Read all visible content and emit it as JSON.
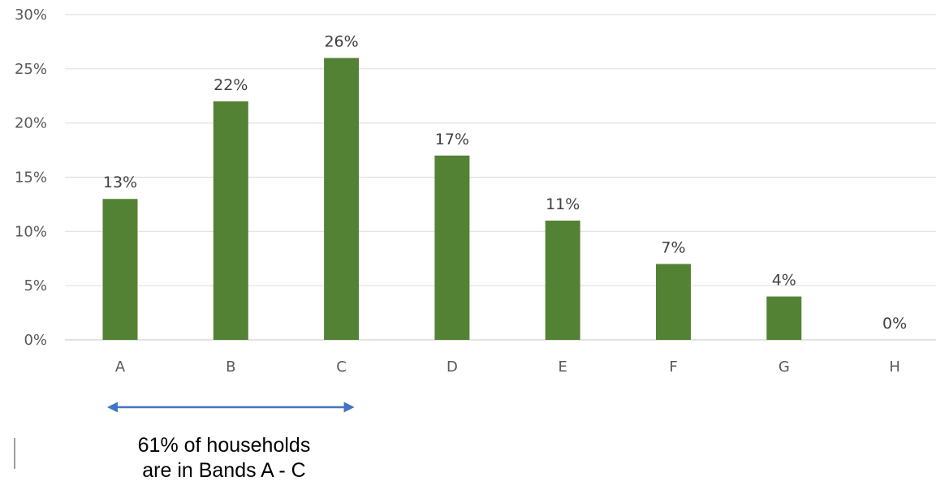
{
  "chart_data": {
    "type": "bar",
    "title": "",
    "xlabel": "",
    "ylabel": "",
    "categories": [
      "A",
      "B",
      "C",
      "D",
      "E",
      "F",
      "G",
      "H"
    ],
    "series": [
      {
        "values": [
          13,
          22,
          26,
          17,
          11,
          7,
          4,
          0
        ],
        "color": "#548235"
      }
    ],
    "data_labels": [
      "13%",
      "22%",
      "26%",
      "17%",
      "11%",
      "7%",
      "4%",
      "0%"
    ],
    "ylim": [
      0,
      30
    ],
    "y_ticks": [
      0,
      5,
      10,
      15,
      20,
      25,
      30
    ],
    "y_tick_labels": [
      "0%",
      "5%",
      "10%",
      "15%",
      "20%",
      "25%",
      "30%"
    ],
    "grid": true,
    "legend": "none",
    "annotation": {
      "span": [
        "A",
        "C"
      ],
      "arrow_color": "#4472c4",
      "lines": [
        "61% of households",
        "are in Bands A - C"
      ]
    }
  }
}
